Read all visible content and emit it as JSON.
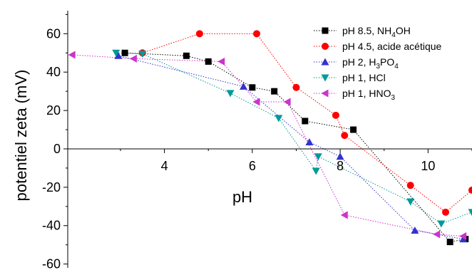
{
  "chart_data": {
    "type": "scatter",
    "xlabel": "pH",
    "ylabel": "potentiel zeta (mV)",
    "xlim": [
      1.8,
      11.0
    ],
    "ylim": [
      -62,
      72
    ],
    "x_ticks": [
      4,
      6,
      8,
      10
    ],
    "y_ticks": [
      -60,
      -40,
      -20,
      0,
      20,
      40,
      60
    ],
    "x_tick_labels": [
      "4",
      "6",
      "8",
      "10"
    ],
    "y_tick_labels": [
      "-60",
      "-40",
      "-20",
      "0",
      "20",
      "40",
      "60"
    ],
    "grid": false,
    "legend_position": "top-right",
    "series": [
      {
        "name": "pH 8.5, NH4OH",
        "name_main": "pH 8.5, NH",
        "name_sub": "4",
        "name_tail": "OH",
        "color": "#000000",
        "marker": "square",
        "x": [
          3.1,
          4.5,
          5.0,
          6.0,
          6.5,
          7.2,
          8.3,
          10.5,
          10.85
        ],
        "y": [
          50,
          48.5,
          45.5,
          32,
          30,
          14.5,
          10,
          -48.5,
          -47
        ]
      },
      {
        "name": "pH 4.5, acide acétique",
        "name_main": "pH 4.5, acide acétique",
        "name_sub": "",
        "name_tail": "",
        "color": "#ff0000",
        "marker": "circle",
        "x": [
          3.5,
          4.8,
          6.1,
          7.0,
          7.9,
          8.1,
          9.6,
          10.4,
          11.0
        ],
        "y": [
          50,
          60,
          60,
          32,
          17.5,
          7,
          -19,
          -33,
          -21.5
        ]
      },
      {
        "name": "pH 2, H3PO4",
        "name_main": "pH 2, H",
        "name_sub": "3",
        "name_tail": "PO",
        "name_sub2": "4",
        "color": "#3333cc",
        "marker": "triangle-up",
        "x": [
          2.95,
          5.8,
          7.3,
          8.0,
          9.7,
          10.8
        ],
        "y": [
          48.5,
          32.5,
          3.5,
          -4,
          -42.5,
          -47
        ]
      },
      {
        "name": "pH 1, HCl",
        "name_main": "pH 1, HCl",
        "name_sub": "",
        "name_tail": "",
        "color": "#009999",
        "marker": "triangle-down",
        "x": [
          2.9,
          3.5,
          5.5,
          6.6,
          7.45,
          7.5,
          9.6,
          10.3,
          11.0
        ],
        "y": [
          50,
          49.5,
          29,
          16,
          -11.5,
          -4,
          -27.5,
          -39,
          -33
        ]
      },
      {
        "name": "pH 1, HNO3",
        "name_main": "pH 1, HNO",
        "name_sub": "3",
        "name_tail": "",
        "color": "#cc33cc",
        "marker": "triangle-left",
        "x": [
          1.9,
          3.3,
          5.3,
          6.1,
          6.8,
          8.1,
          10.2,
          10.8
        ],
        "y": [
          49,
          47,
          45.5,
          24.5,
          24.5,
          -34.5,
          -44.5,
          -45.5
        ]
      }
    ]
  }
}
